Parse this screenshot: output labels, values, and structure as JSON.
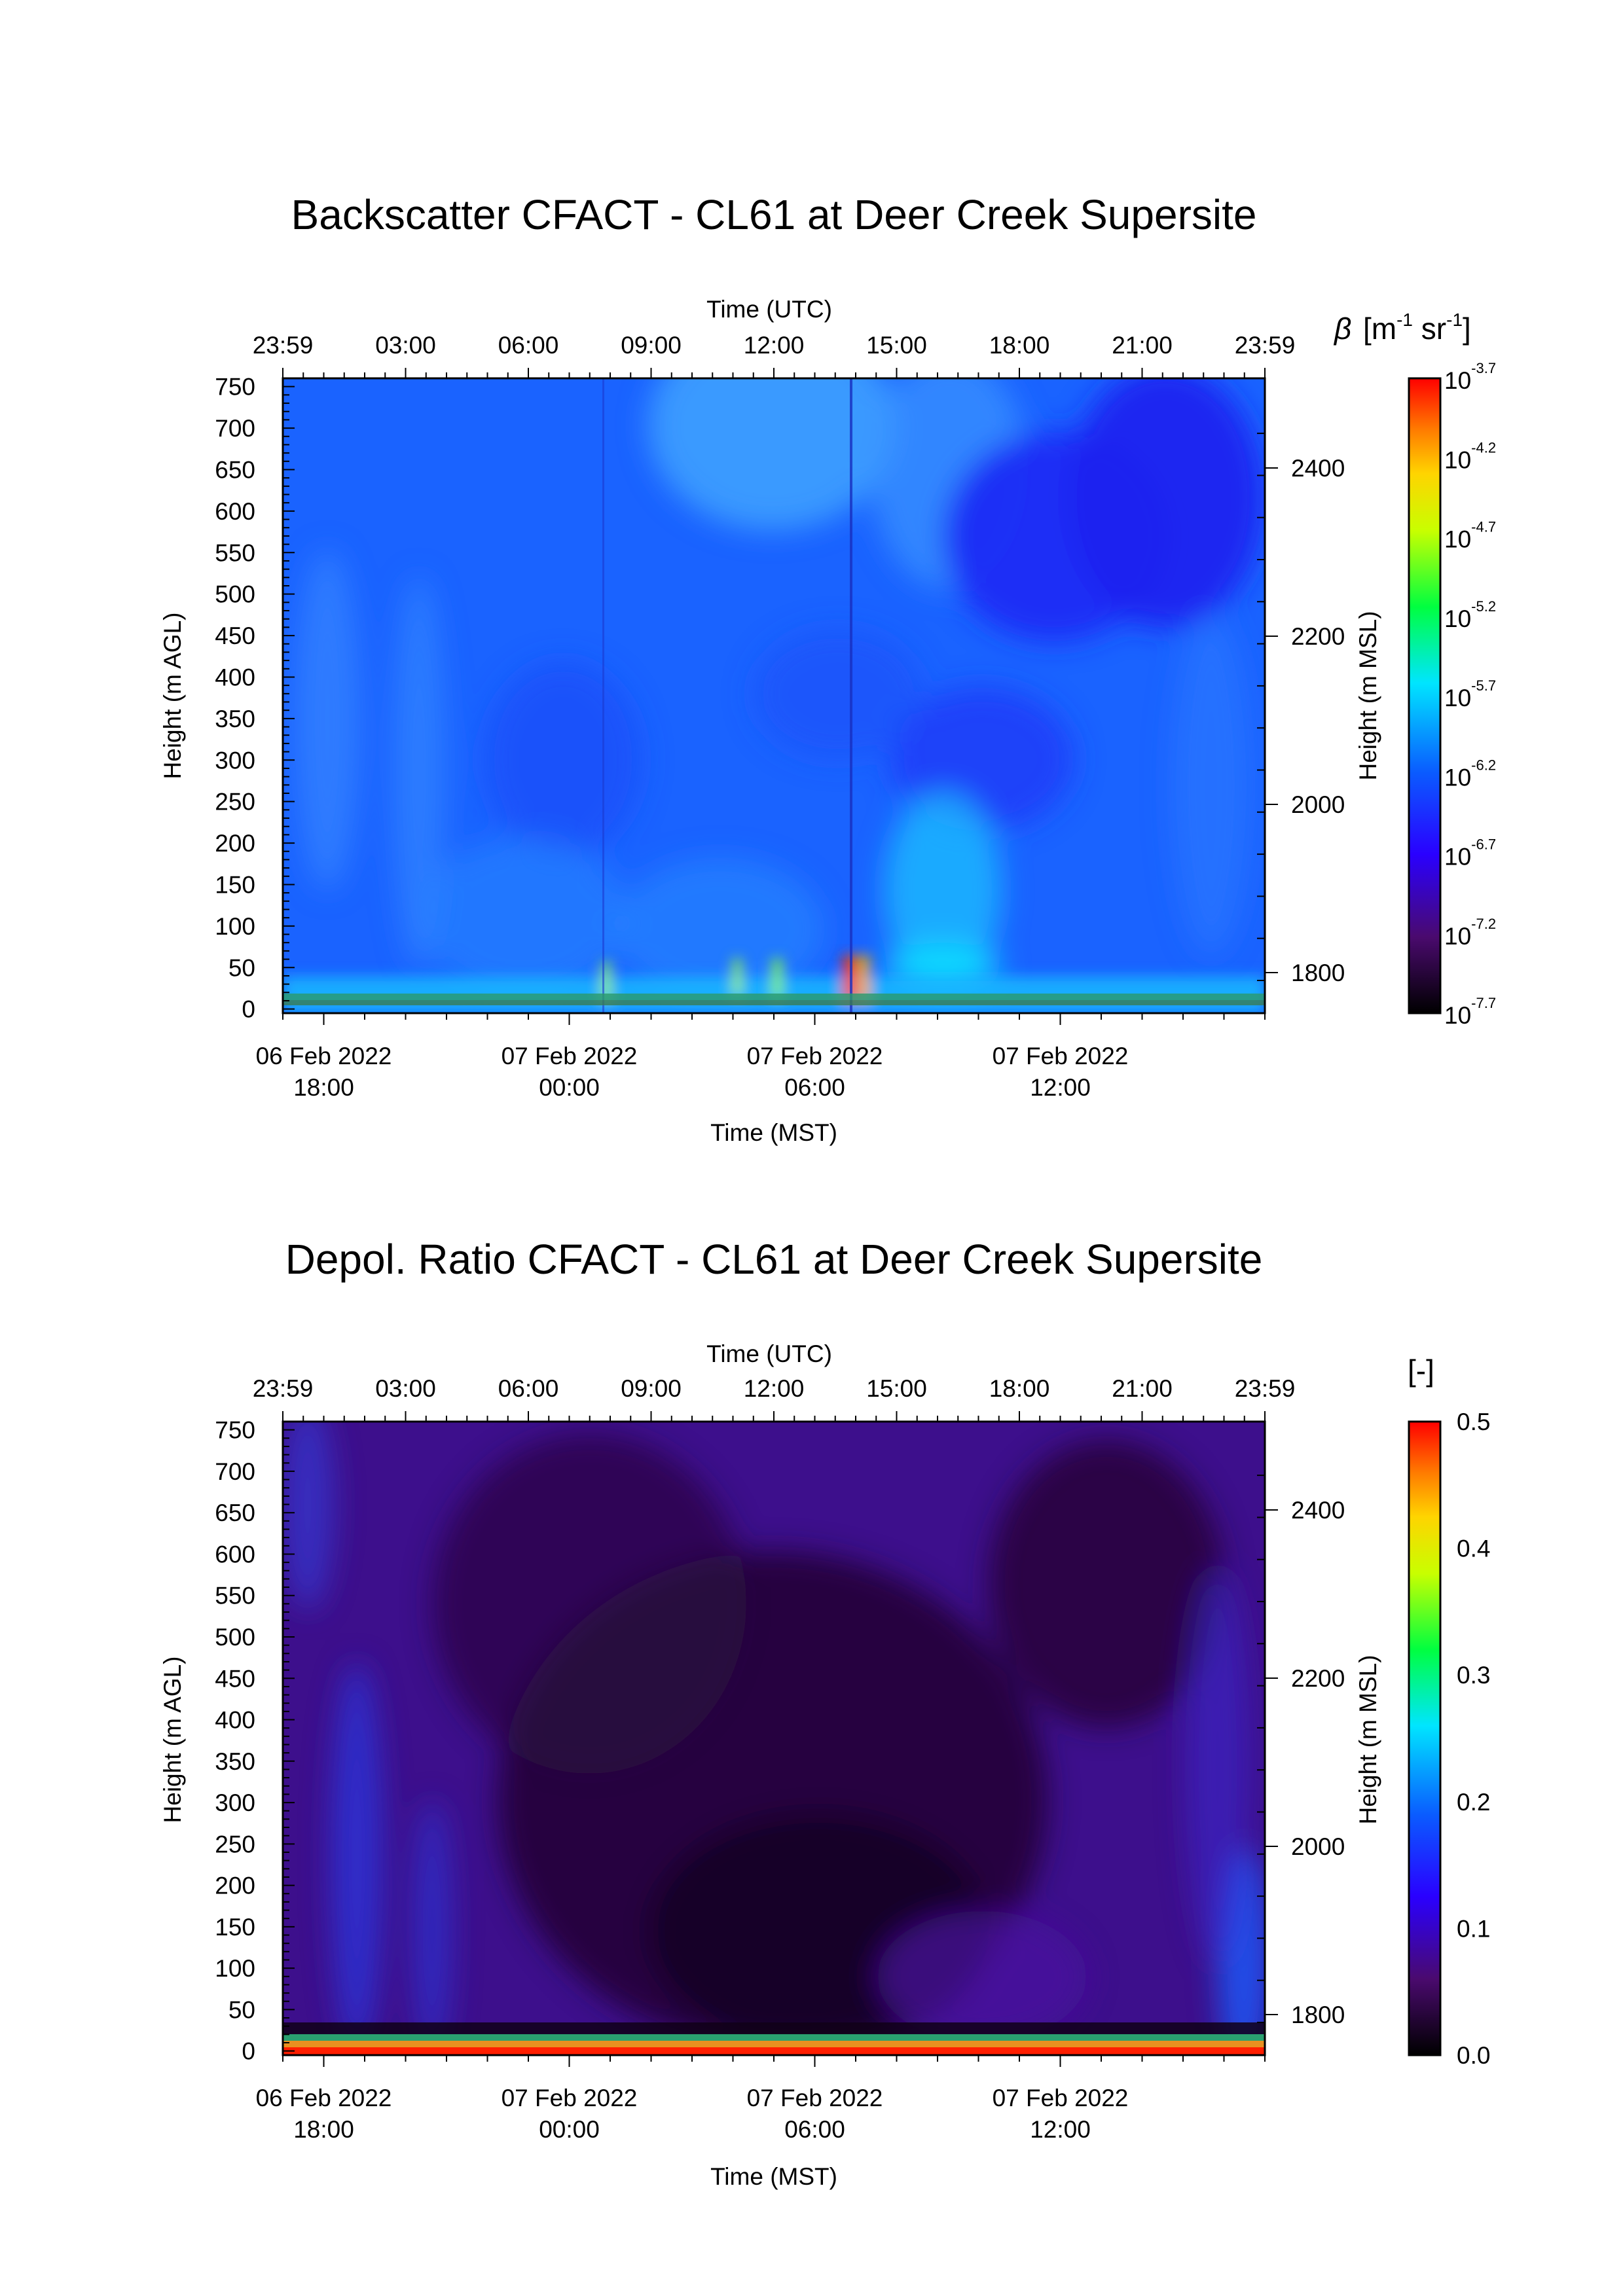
{
  "chart_data": [
    {
      "type": "heatmap",
      "title": "Backscatter CFACT - CL61 at Deer Creek Supersite",
      "top_axis": {
        "label": "Time (UTC)",
        "tick_labels": [
          "23:59",
          "03:00",
          "06:00",
          "09:00",
          "12:00",
          "15:00",
          "18:00",
          "21:00",
          "23:59"
        ]
      },
      "bottom_axis": {
        "label": "Time (MST)",
        "tick_labels": [
          [
            "06 Feb 2022",
            "18:00"
          ],
          [
            "07 Feb 2022",
            "00:00"
          ],
          [
            "07 Feb 2022",
            "06:00"
          ],
          [
            "07 Feb 2022",
            "12:00"
          ]
        ]
      },
      "left_axis": {
        "label": "Height (m AGL)",
        "range": [
          -5,
          760
        ],
        "tick_labels": [
          "0",
          "50",
          "100",
          "150",
          "200",
          "250",
          "300",
          "350",
          "400",
          "450",
          "500",
          "550",
          "600",
          "650",
          "700",
          "750"
        ]
      },
      "right_axis": {
        "label": "Height (m MSL)",
        "tick_labels": [
          "1800",
          "2000",
          "2200",
          "2400"
        ]
      },
      "colorbar": {
        "label_symbol": "β",
        "label_unit": "[m",
        "label_exp1": "-1",
        "label_mid": " sr",
        "label_exp2": "-1",
        "label_close": "]",
        "scale": "log",
        "range": [
          -7.7,
          -3.7
        ],
        "tick_base": "10",
        "tick_exponents": [
          "-3.7",
          "-4.2",
          "-4.7",
          "-5.2",
          "-5.7",
          "-6.2",
          "-6.7",
          "-7.2",
          "-7.7"
        ]
      }
    },
    {
      "type": "heatmap",
      "title": "Depol. Ratio CFACT - CL61 at Deer Creek Supersite",
      "top_axis": {
        "label": "Time (UTC)",
        "tick_labels": [
          "23:59",
          "03:00",
          "06:00",
          "09:00",
          "12:00",
          "15:00",
          "18:00",
          "21:00",
          "23:59"
        ]
      },
      "bottom_axis": {
        "label": "Time (MST)",
        "tick_labels": [
          [
            "06 Feb 2022",
            "18:00"
          ],
          [
            "07 Feb 2022",
            "00:00"
          ],
          [
            "07 Feb 2022",
            "06:00"
          ],
          [
            "07 Feb 2022",
            "12:00"
          ]
        ]
      },
      "left_axis": {
        "label": "Height (m AGL)",
        "range": [
          -5,
          760
        ],
        "tick_labels": [
          "0",
          "50",
          "100",
          "150",
          "200",
          "250",
          "300",
          "350",
          "400",
          "450",
          "500",
          "550",
          "600",
          "650",
          "700",
          "750"
        ]
      },
      "right_axis": {
        "label": "Height (m MSL)",
        "tick_labels": [
          "1800",
          "2000",
          "2200",
          "2400"
        ]
      },
      "colorbar": {
        "label": "[-]",
        "scale": "linear",
        "range": [
          0.0,
          0.5
        ],
        "tick_labels": [
          "0.5",
          "0.4",
          "0.3",
          "0.2",
          "0.1",
          "0.0"
        ]
      }
    }
  ],
  "colors": {
    "colormap": [
      "#000000",
      "#5a0a7a",
      "#2400ff",
      "#0a6cff",
      "#00e5ff",
      "#00ff3c",
      "#c8ff00",
      "#ffd400",
      "#ff7a00",
      "#ff0000"
    ],
    "backscatter_bg": "#1a63ff",
    "depol_bg": "#3d0f8c"
  }
}
